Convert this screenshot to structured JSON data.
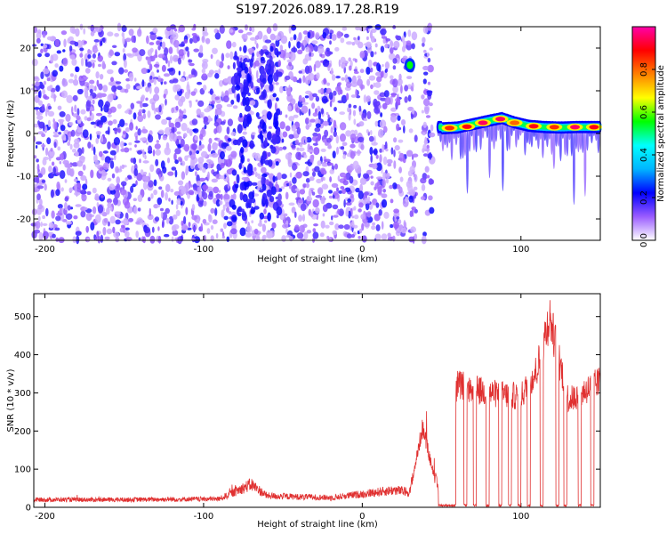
{
  "title": "S197.2026.089.17.28.R19",
  "chart_data": [
    {
      "type": "heatmap",
      "xlabel": "Height of straight line (km)",
      "ylabel": "Frequency (Hz)",
      "xlim": [
        -207,
        150
      ],
      "ylim": [
        -25,
        25
      ],
      "xticks": [
        -200,
        -100,
        0,
        100
      ],
      "yticks": [
        -20,
        -10,
        0,
        10,
        20
      ],
      "colorbar": {
        "label": "Normalized spectral amplitude",
        "range": [
          0,
          1
        ],
        "ticks": [
          "0.0",
          "0.2",
          "0.4",
          "0.6",
          "0.8"
        ],
        "colors": [
          "#ffffff",
          "#9a5cff",
          "#0000ff",
          "#00b4ff",
          "#00ffff",
          "#00ff00",
          "#ffff00",
          "#ff8000",
          "#ff0000",
          "#ff00aa"
        ]
      },
      "features": {
        "noise_region_km": [
          -207,
          48
        ],
        "tone_region_km": [
          48,
          150
        ],
        "tone_frequency_hz": [
          {
            "x": 50,
            "f": 1.2
          },
          {
            "x": 60,
            "f": 1.4
          },
          {
            "x": 70,
            "f": 2.2
          },
          {
            "x": 80,
            "f": 3.0
          },
          {
            "x": 88,
            "f": 3.6
          },
          {
            "x": 96,
            "f": 2.6
          },
          {
            "x": 105,
            "f": 1.8
          },
          {
            "x": 115,
            "f": 1.5
          },
          {
            "x": 125,
            "f": 1.4
          },
          {
            "x": 135,
            "f": 1.5
          },
          {
            "x": 150,
            "f": 1.5
          }
        ],
        "tone_peaks": [
          {
            "x": 55,
            "f": 1.3,
            "a": 0.85
          },
          {
            "x": 66,
            "f": 1.6,
            "a": 0.9
          },
          {
            "x": 76,
            "f": 2.5,
            "a": 0.95
          },
          {
            "x": 87,
            "f": 3.4,
            "a": 0.95
          },
          {
            "x": 96,
            "f": 2.5,
            "a": 0.8
          },
          {
            "x": 108,
            "f": 1.7,
            "a": 0.9
          },
          {
            "x": 121,
            "f": 1.5,
            "a": 0.85
          },
          {
            "x": 134,
            "f": 1.5,
            "a": 0.95
          },
          {
            "x": 146,
            "f": 1.5,
            "a": 0.9
          }
        ],
        "isolated_peak": {
          "x": 30,
          "f": 16,
          "a": 0.55
        },
        "gaps_km": [
          [
            -80,
            -77
          ],
          [
            28,
            29
          ],
          [
            34,
            38
          ],
          [
            44,
            48
          ]
        ]
      }
    },
    {
      "type": "line",
      "xlabel": "Height of straight line (km)",
      "ylabel": "SNR (10 * v/v)",
      "xlim": [
        -207,
        150
      ],
      "ylim": [
        0,
        560
      ],
      "xticks": [
        -200,
        -100,
        0,
        100
      ],
      "yticks": [
        0,
        100,
        200,
        300,
        400,
        500
      ],
      "series": [
        {
          "color": "#e03030",
          "profile": [
            {
              "x": -207,
              "y": 20
            },
            {
              "x": -150,
              "y": 20
            },
            {
              "x": -90,
              "y": 22
            },
            {
              "x": -78,
              "y": 45
            },
            {
              "x": -70,
              "y": 60
            },
            {
              "x": -60,
              "y": 30
            },
            {
              "x": -20,
              "y": 25
            },
            {
              "x": 0,
              "y": 35
            },
            {
              "x": 20,
              "y": 45
            },
            {
              "x": 30,
              "y": 40
            },
            {
              "x": 38,
              "y": 210
            },
            {
              "x": 43,
              "y": 120
            },
            {
              "x": 48,
              "y": 45
            },
            {
              "x": 60,
              "y": 320
            },
            {
              "x": 80,
              "y": 300
            },
            {
              "x": 100,
              "y": 290
            },
            {
              "x": 110,
              "y": 360
            },
            {
              "x": 118,
              "y": 500
            },
            {
              "x": 130,
              "y": 280
            },
            {
              "x": 150,
              "y": 330
            }
          ],
          "dropouts_km": [
            [
              48,
              59
            ],
            [
              64,
              66
            ],
            [
              70,
              72
            ],
            [
              78,
              80
            ],
            [
              86,
              88
            ],
            [
              92,
              94
            ],
            [
              98,
              100
            ],
            [
              104,
              106
            ],
            [
              112,
              114
            ],
            [
              122,
              124
            ],
            [
              127,
              129
            ],
            [
              136,
              138
            ],
            [
              144,
              146
            ]
          ]
        }
      ]
    }
  ]
}
